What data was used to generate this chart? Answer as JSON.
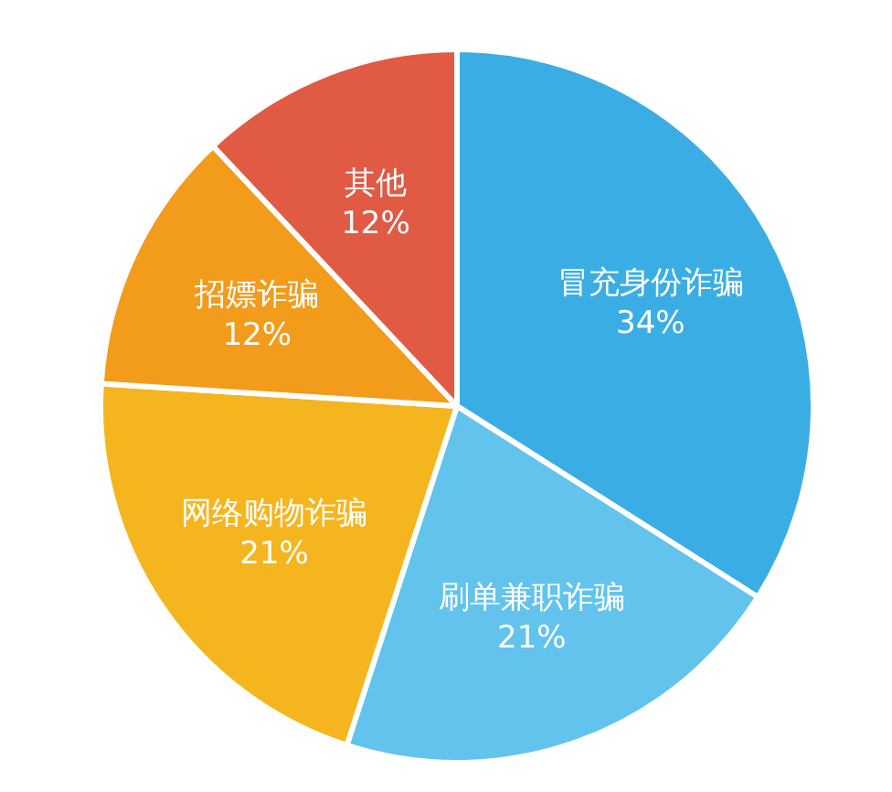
{
  "chart_data": {
    "type": "pie",
    "categories": [
      "冒充身份诈骗",
      "刷单兼职诈骗",
      "网络购物诈骗",
      "招嫖诈骗",
      "其他"
    ],
    "values": [
      34,
      21,
      21,
      12,
      12
    ],
    "colors": [
      "#3aaee4",
      "#62c3ec",
      "#f5b51f",
      "#f39b1a",
      "#e05a44"
    ],
    "value_labels": [
      "34%",
      "21%",
      "21%",
      "12%",
      "12%"
    ]
  }
}
